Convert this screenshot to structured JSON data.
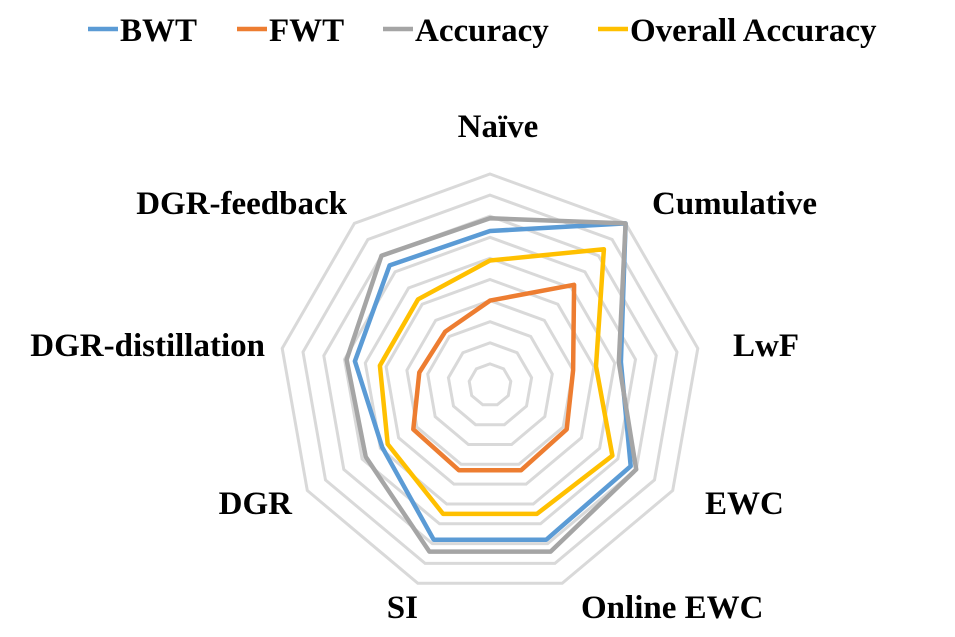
{
  "chart_data": {
    "type": "radar",
    "categories": [
      "Naïve",
      "Cumulative",
      "LwF",
      "EWC",
      "Online EWC",
      "SI",
      "DGR",
      "DGR-distillation",
      "DGR-feedback"
    ],
    "rings": 10,
    "rmax": 10,
    "grid": true,
    "legend_position": "top",
    "series": [
      {
        "name": "BWT",
        "color": "#5B9BD5",
        "values": [
          7.3,
          10.0,
          6.3,
          7.7,
          7.8,
          7.8,
          5.9,
          6.5,
          7.4
        ]
      },
      {
        "name": "FWT",
        "color": "#ED7D31",
        "values": [
          4.0,
          6.2,
          4.0,
          4.2,
          4.3,
          4.3,
          4.2,
          3.4,
          3.3
        ]
      },
      {
        "name": "Accuracy",
        "color": "#A5A5A5",
        "values": [
          7.9,
          10.0,
          6.2,
          8.0,
          8.4,
          8.4,
          6.8,
          6.9,
          8.0
        ]
      },
      {
        "name": "Overall Accuracy",
        "color": "#FFC000",
        "values": [
          5.9,
          8.4,
          5.1,
          6.7,
          6.5,
          6.5,
          5.6,
          5.3,
          5.3
        ]
      }
    ]
  }
}
